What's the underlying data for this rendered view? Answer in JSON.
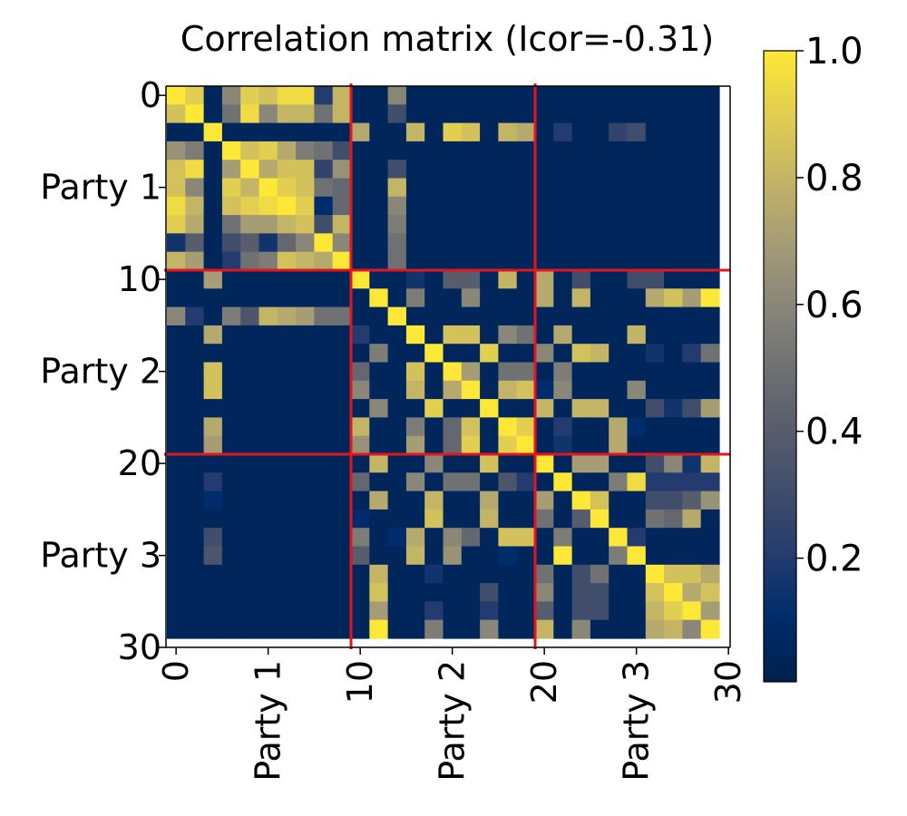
{
  "chart_data": {
    "type": "heatmap",
    "title": "Correlation matrix (Icor=-0.31)",
    "size": 30,
    "x_ticks": [
      "0",
      "Party 1",
      "10",
      "Party 2",
      "20",
      "Party 3",
      "30"
    ],
    "x_tick_positions": [
      0,
      5,
      10,
      15,
      20,
      25,
      30
    ],
    "y_ticks": [
      "0",
      "Party 1",
      "10",
      "Party 2",
      "20",
      "Party 3",
      "30"
    ],
    "y_tick_positions": [
      0,
      5,
      10,
      15,
      20,
      25,
      30
    ],
    "separators": [
      9.5,
      19.5
    ],
    "separator_color": "#e8141c",
    "colorbar": {
      "min": 0.0,
      "max": 1.0,
      "ticks": [
        "0.2",
        "0.4",
        "0.6",
        "0.8",
        "1.0"
      ],
      "tick_values": [
        0.2,
        0.4,
        0.6,
        0.8,
        1.0
      ],
      "colormap": "cividis"
    },
    "values": [
      [
        1.0,
        0.9,
        0.05,
        0.6,
        0.9,
        0.85,
        0.95,
        0.95,
        0.2,
        0.8,
        0.05,
        0.05,
        0.6,
        0.05,
        0.05,
        0.05,
        0.05,
        0.05,
        0.05,
        0.05,
        0.05,
        0.05,
        0.05,
        0.05,
        0.05,
        0.05,
        0.05,
        0.05,
        0.05,
        0.05
      ],
      [
        0.85,
        1.0,
        0.05,
        0.5,
        0.95,
        0.6,
        0.8,
        0.8,
        0.5,
        0.8,
        0.05,
        0.05,
        0.3,
        0.05,
        0.05,
        0.05,
        0.05,
        0.05,
        0.05,
        0.05,
        0.05,
        0.05,
        0.05,
        0.05,
        0.05,
        0.05,
        0.05,
        0.05,
        0.05,
        0.05
      ],
      [
        0.05,
        0.05,
        1.0,
        0.05,
        0.05,
        0.05,
        0.05,
        0.05,
        0.05,
        0.05,
        0.75,
        0.05,
        0.05,
        0.8,
        0.05,
        0.9,
        0.85,
        0.05,
        0.8,
        0.75,
        0.05,
        0.2,
        0.05,
        0.05,
        0.25,
        0.3,
        0.05,
        0.05,
        0.05,
        0.05
      ],
      [
        0.65,
        0.55,
        0.05,
        1.0,
        0.85,
        0.9,
        0.75,
        0.55,
        0.5,
        0.3,
        0.05,
        0.05,
        0.05,
        0.05,
        0.05,
        0.05,
        0.05,
        0.05,
        0.05,
        0.05,
        0.05,
        0.05,
        0.05,
        0.05,
        0.05,
        0.05,
        0.05,
        0.05,
        0.05,
        0.05
      ],
      [
        0.85,
        0.95,
        0.05,
        0.7,
        1.0,
        0.75,
        0.85,
        0.85,
        0.25,
        0.65,
        0.05,
        0.05,
        0.3,
        0.05,
        0.05,
        0.05,
        0.05,
        0.05,
        0.05,
        0.05,
        0.05,
        0.05,
        0.05,
        0.05,
        0.05,
        0.05,
        0.05,
        0.05,
        0.05,
        0.05
      ],
      [
        0.85,
        0.6,
        0.05,
        0.9,
        0.8,
        1.0,
        0.9,
        0.85,
        0.5,
        0.45,
        0.05,
        0.05,
        0.8,
        0.05,
        0.05,
        0.05,
        0.05,
        0.05,
        0.05,
        0.05,
        0.05,
        0.05,
        0.05,
        0.05,
        0.05,
        0.05,
        0.05,
        0.05,
        0.05,
        0.05
      ],
      [
        0.95,
        0.8,
        0.05,
        0.85,
        0.9,
        0.95,
        1.0,
        0.9,
        0.1,
        0.45,
        0.05,
        0.05,
        0.6,
        0.05,
        0.05,
        0.05,
        0.05,
        0.05,
        0.05,
        0.05,
        0.05,
        0.05,
        0.05,
        0.05,
        0.05,
        0.05,
        0.05,
        0.05,
        0.05,
        0.05
      ],
      [
        0.9,
        0.75,
        0.05,
        0.5,
        0.7,
        0.7,
        0.8,
        0.85,
        0.3,
        0.8,
        0.05,
        0.05,
        0.55,
        0.05,
        0.05,
        0.05,
        0.05,
        0.05,
        0.05,
        0.05,
        0.05,
        0.05,
        0.05,
        0.05,
        0.05,
        0.05,
        0.05,
        0.05,
        0.05,
        0.05
      ],
      [
        0.15,
        0.4,
        0.05,
        0.3,
        0.4,
        0.15,
        0.45,
        0.6,
        1.0,
        0.6,
        0.05,
        0.05,
        0.5,
        0.05,
        0.05,
        0.05,
        0.05,
        0.05,
        0.05,
        0.05,
        0.05,
        0.05,
        0.05,
        0.05,
        0.05,
        0.05,
        0.05,
        0.05,
        0.05,
        0.05
      ],
      [
        0.8,
        0.7,
        0.05,
        0.2,
        0.5,
        0.55,
        0.85,
        0.8,
        0.75,
        1.0,
        0.05,
        0.05,
        0.5,
        0.05,
        0.05,
        0.05,
        0.05,
        0.05,
        0.05,
        0.05,
        0.05,
        0.05,
        0.05,
        0.05,
        0.05,
        0.05,
        0.05,
        0.05,
        0.05,
        0.05
      ],
      [
        0.05,
        0.05,
        0.7,
        0.05,
        0.05,
        0.05,
        0.05,
        0.05,
        0.05,
        0.05,
        1.0,
        0.05,
        0.05,
        0.15,
        0.05,
        0.4,
        0.4,
        0.05,
        0.8,
        0.05,
        0.75,
        0.05,
        0.3,
        0.05,
        0.05,
        0.3,
        0.3,
        0.05,
        0.05,
        0.05
      ],
      [
        0.05,
        0.05,
        0.05,
        0.05,
        0.05,
        0.05,
        0.05,
        0.05,
        0.05,
        0.05,
        0.05,
        1.0,
        0.05,
        0.55,
        0.05,
        0.05,
        0.6,
        0.05,
        0.05,
        0.05,
        0.75,
        0.05,
        0.8,
        0.05,
        0.05,
        0.05,
        0.75,
        0.85,
        0.7,
        1.0
      ],
      [
        0.6,
        0.2,
        0.05,
        0.55,
        0.35,
        0.8,
        0.75,
        0.7,
        0.5,
        0.5,
        0.05,
        0.05,
        1.0,
        0.05,
        0.05,
        0.05,
        0.05,
        0.05,
        0.05,
        0.05,
        0.05,
        0.05,
        0.05,
        0.05,
        0.05,
        0.05,
        0.05,
        0.05,
        0.05,
        0.05
      ],
      [
        0.05,
        0.05,
        0.75,
        0.05,
        0.05,
        0.05,
        0.05,
        0.05,
        0.05,
        0.05,
        0.2,
        0.05,
        0.05,
        1.0,
        0.05,
        0.85,
        0.85,
        0.05,
        0.6,
        0.5,
        0.05,
        0.75,
        0.05,
        0.05,
        0.05,
        0.8,
        0.05,
        0.05,
        0.05,
        0.05
      ],
      [
        0.05,
        0.05,
        0.05,
        0.05,
        0.05,
        0.05,
        0.05,
        0.05,
        0.05,
        0.05,
        0.05,
        0.55,
        0.05,
        0.05,
        1.0,
        0.05,
        0.05,
        0.9,
        0.05,
        0.05,
        0.6,
        0.05,
        0.85,
        0.8,
        0.05,
        0.05,
        0.15,
        0.05,
        0.2,
        0.5
      ],
      [
        0.05,
        0.05,
        0.85,
        0.05,
        0.05,
        0.05,
        0.05,
        0.05,
        0.05,
        0.05,
        0.45,
        0.05,
        0.05,
        0.85,
        0.05,
        1.0,
        0.7,
        0.05,
        0.5,
        0.5,
        0.05,
        0.55,
        0.05,
        0.05,
        0.05,
        0.05,
        0.05,
        0.05,
        0.05,
        0.05
      ],
      [
        0.05,
        0.05,
        0.85,
        0.05,
        0.05,
        0.05,
        0.05,
        0.05,
        0.05,
        0.05,
        0.6,
        0.05,
        0.05,
        0.8,
        0.05,
        0.75,
        1.0,
        0.05,
        0.8,
        0.85,
        0.1,
        0.6,
        0.05,
        0.05,
        0.05,
        0.6,
        0.05,
        0.05,
        0.05,
        0.05
      ],
      [
        0.05,
        0.05,
        0.05,
        0.05,
        0.05,
        0.05,
        0.05,
        0.05,
        0.05,
        0.05,
        0.05,
        0.6,
        0.05,
        0.05,
        0.9,
        0.05,
        0.05,
        1.0,
        0.05,
        0.05,
        0.8,
        0.05,
        0.8,
        0.8,
        0.05,
        0.05,
        0.3,
        0.15,
        0.3,
        0.7
      ],
      [
        0.05,
        0.05,
        0.75,
        0.05,
        0.05,
        0.05,
        0.05,
        0.05,
        0.05,
        0.05,
        0.8,
        0.05,
        0.05,
        0.55,
        0.05,
        0.45,
        0.85,
        0.05,
        1.0,
        0.9,
        0.05,
        0.2,
        0.05,
        0.05,
        0.75,
        0.1,
        0.05,
        0.05,
        0.05,
        0.05
      ],
      [
        0.05,
        0.05,
        0.7,
        0.05,
        0.05,
        0.05,
        0.05,
        0.05,
        0.05,
        0.05,
        0.65,
        0.05,
        0.05,
        0.7,
        0.05,
        0.45,
        0.9,
        0.05,
        0.9,
        1.0,
        0.05,
        0.15,
        0.05,
        0.05,
        0.75,
        0.05,
        0.05,
        0.05,
        0.05,
        0.05
      ],
      [
        0.05,
        0.05,
        0.05,
        0.05,
        0.05,
        0.05,
        0.05,
        0.05,
        0.05,
        0.05,
        0.05,
        0.8,
        0.05,
        0.05,
        0.6,
        0.05,
        0.05,
        0.85,
        0.05,
        0.05,
        1.0,
        0.05,
        0.7,
        0.7,
        0.05,
        0.05,
        0.3,
        0.6,
        0.15,
        0.8
      ],
      [
        0.05,
        0.05,
        0.2,
        0.05,
        0.05,
        0.05,
        0.05,
        0.05,
        0.05,
        0.05,
        0.45,
        0.05,
        0.05,
        0.6,
        0.05,
        0.5,
        0.5,
        0.05,
        0.35,
        0.2,
        0.05,
        1.0,
        0.05,
        0.05,
        0.55,
        0.95,
        0.2,
        0.2,
        0.2,
        0.2
      ],
      [
        0.05,
        0.05,
        0.1,
        0.05,
        0.05,
        0.05,
        0.05,
        0.05,
        0.05,
        0.05,
        0.05,
        0.75,
        0.05,
        0.05,
        0.8,
        0.05,
        0.05,
        0.75,
        0.05,
        0.05,
        0.7,
        0.05,
        1.0,
        0.85,
        0.05,
        0.05,
        0.3,
        0.3,
        0.4,
        0.65
      ],
      [
        0.05,
        0.05,
        0.05,
        0.05,
        0.05,
        0.05,
        0.05,
        0.05,
        0.05,
        0.05,
        0.1,
        0.05,
        0.05,
        0.05,
        0.85,
        0.05,
        0.05,
        0.8,
        0.05,
        0.05,
        0.5,
        0.05,
        0.4,
        1.0,
        0.05,
        0.05,
        0.5,
        0.45,
        0.75,
        0.05
      ],
      [
        0.05,
        0.05,
        0.3,
        0.05,
        0.05,
        0.05,
        0.05,
        0.05,
        0.05,
        0.05,
        0.55,
        0.05,
        0.1,
        0.75,
        0.05,
        0.6,
        0.45,
        0.05,
        0.85,
        0.85,
        0.05,
        0.55,
        0.05,
        0.05,
        1.0,
        0.2,
        0.05,
        0.05,
        0.05,
        0.05
      ],
      [
        0.05,
        0.05,
        0.35,
        0.05,
        0.05,
        0.05,
        0.05,
        0.05,
        0.05,
        0.05,
        0.4,
        0.05,
        0.05,
        0.8,
        0.05,
        0.65,
        0.05,
        0.05,
        0.1,
        0.05,
        0.05,
        1.0,
        0.05,
        0.05,
        0.55,
        1.0,
        0.05,
        0.05,
        0.05,
        0.05
      ],
      [
        0.05,
        0.05,
        0.05,
        0.05,
        0.05,
        0.05,
        0.05,
        0.05,
        0.05,
        0.05,
        0.05,
        0.8,
        0.05,
        0.05,
        0.15,
        0.05,
        0.05,
        0.05,
        0.05,
        0.05,
        0.5,
        0.05,
        0.3,
        0.5,
        0.05,
        0.05,
        1.0,
        0.85,
        0.85,
        0.75
      ],
      [
        0.05,
        0.05,
        0.05,
        0.05,
        0.05,
        0.05,
        0.05,
        0.05,
        0.05,
        0.05,
        0.05,
        0.85,
        0.05,
        0.05,
        0.05,
        0.05,
        0.05,
        0.3,
        0.05,
        0.05,
        0.6,
        0.05,
        0.3,
        0.3,
        0.05,
        0.05,
        0.85,
        1.0,
        0.75,
        0.85
      ],
      [
        0.05,
        0.05,
        0.05,
        0.05,
        0.05,
        0.05,
        0.05,
        0.05,
        0.05,
        0.05,
        0.05,
        0.7,
        0.05,
        0.05,
        0.2,
        0.05,
        0.05,
        0.2,
        0.05,
        0.05,
        0.4,
        0.05,
        0.3,
        0.3,
        0.05,
        0.05,
        0.8,
        0.9,
        1.0,
        0.7
      ],
      [
        0.05,
        0.05,
        0.05,
        0.05,
        0.05,
        0.05,
        0.05,
        0.05,
        0.05,
        0.05,
        0.05,
        1.0,
        0.05,
        0.05,
        0.55,
        0.05,
        0.05,
        0.6,
        0.05,
        0.05,
        0.8,
        0.05,
        0.6,
        0.05,
        0.05,
        0.05,
        0.75,
        0.8,
        0.6,
        1.0
      ]
    ]
  }
}
